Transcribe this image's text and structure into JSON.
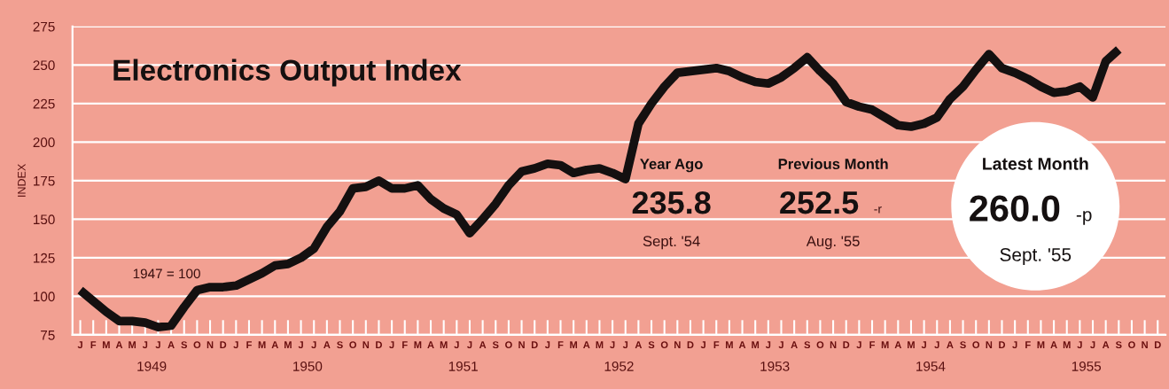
{
  "chart_data": {
    "type": "line",
    "title": "Electronics Output Index",
    "ylabel": "INDEX",
    "categories": [
      "J",
      "F",
      "M",
      "A",
      "M",
      "J",
      "J",
      "A",
      "S",
      "O",
      "N",
      "D",
      "J",
      "F",
      "M",
      "A",
      "M",
      "J",
      "J",
      "A",
      "S",
      "O",
      "N",
      "D",
      "J",
      "F",
      "M",
      "A",
      "M",
      "J",
      "J",
      "A",
      "S",
      "O",
      "N",
      "D",
      "J",
      "F",
      "M",
      "A",
      "M",
      "J",
      "J",
      "A",
      "S",
      "O",
      "N",
      "D",
      "J",
      "F",
      "M",
      "A",
      "M",
      "J",
      "J",
      "A",
      "S",
      "O",
      "N",
      "D",
      "J",
      "F",
      "M",
      "A",
      "M",
      "J",
      "J",
      "A",
      "S",
      "O",
      "N",
      "D",
      "J",
      "F",
      "M",
      "A",
      "M",
      "J",
      "J",
      "A",
      "S",
      "O",
      "N",
      "D"
    ],
    "series": [
      {
        "color": "#141010",
        "values": [
          104,
          97,
          90,
          84,
          84,
          83,
          80,
          81,
          93,
          104,
          106,
          106,
          107,
          111,
          115,
          120,
          121,
          125,
          131,
          145,
          155,
          170,
          171,
          175,
          170,
          170,
          172,
          163,
          157,
          153,
          141,
          150,
          160,
          172,
          181,
          183,
          186,
          185,
          180,
          182,
          183,
          180,
          176,
          212,
          225,
          236,
          245,
          246,
          247,
          248,
          246,
          242,
          239,
          238,
          242,
          248,
          255,
          246,
          238,
          226,
          223,
          221,
          216,
          211,
          210,
          212,
          216,
          228,
          236,
          247,
          257,
          248,
          245,
          241,
          236,
          232,
          233,
          236,
          229,
          252.5,
          260,
          null,
          null,
          null
        ]
      }
    ],
    "ylim": [
      75,
      275
    ],
    "yticks": [
      75,
      100,
      125,
      150,
      175,
      200,
      225,
      250,
      275
    ],
    "grid": "y",
    "marker": "none",
    "line_style": "solid",
    "annotations": [
      "1949",
      "1950",
      "1951",
      "1952",
      "1953",
      "1954",
      "1955",
      "1947 = 100",
      "Year Ago",
      "235.8",
      "Sept. '54",
      "Previous Month",
      "252.5",
      "-r",
      "Aug. '55",
      "Latest Month",
      "260.0",
      "-p",
      "Sept. '55"
    ]
  }
}
